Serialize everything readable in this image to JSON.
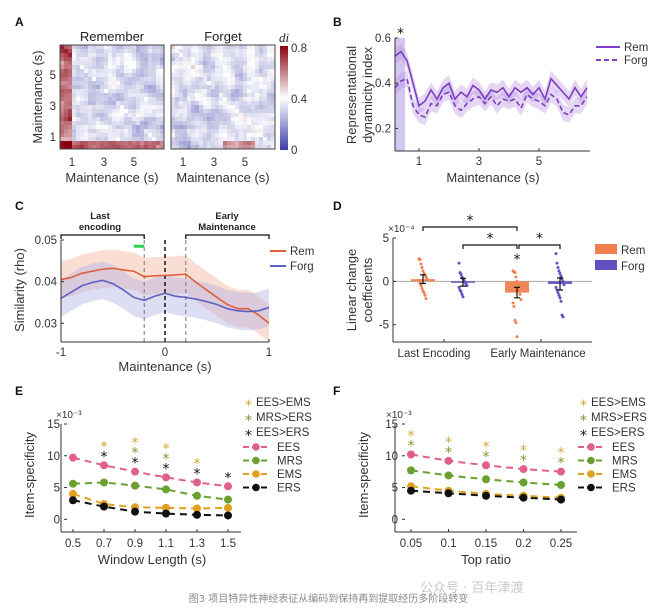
{
  "caption": "图3 项目特异性神经表征从编码到保持再到提取经历多阶段转变",
  "watermark": "公众号 · 百年津渡",
  "chart_data": [
    {
      "panel": "A",
      "type": "heatmap",
      "subplots": [
        "Remember",
        "Forget"
      ],
      "xlabel": "Maintenance (s)",
      "ylabel": "Maintenance (s)",
      "xticks": [
        "1",
        "3",
        "5"
      ],
      "yticks": [
        "1",
        "3",
        "5"
      ],
      "colorbar": {
        "label": "di",
        "ticks": [
          "0",
          "0.4",
          "0.8"
        ],
        "range": [
          0,
          0.8
        ],
        "colors": [
          "#3b3fa8",
          "#ffffff",
          "#8b0010"
        ]
      }
    },
    {
      "panel": "B",
      "type": "line",
      "xlabel": "Maintenance (s)",
      "ylabel": "Representational dynamicity index",
      "xticks": [
        "1",
        "3",
        "5"
      ],
      "yticks": [
        "0.2",
        "0.4",
        "0.6"
      ],
      "xlim": [
        0.2,
        6.7
      ],
      "ylim": [
        0.1,
        0.6
      ],
      "significance_marker": "*",
      "significant_window": [
        0.2,
        0.5
      ],
      "color": "#7b3fbf",
      "x": [
        0.2,
        0.4,
        0.6,
        0.8,
        1.0,
        1.2,
        1.4,
        1.6,
        1.8,
        2.0,
        2.2,
        2.4,
        2.6,
        2.8,
        3.0,
        3.2,
        3.4,
        3.6,
        3.8,
        4.0,
        4.2,
        4.4,
        4.6,
        4.8,
        5.0,
        5.2,
        5.4,
        5.6,
        5.8,
        6.0,
        6.2,
        6.4,
        6.6
      ],
      "series": [
        {
          "name": "Rem",
          "style": "solid",
          "values": [
            0.52,
            0.54,
            0.5,
            0.4,
            0.3,
            0.32,
            0.37,
            0.33,
            0.38,
            0.4,
            0.33,
            0.36,
            0.34,
            0.39,
            0.37,
            0.33,
            0.37,
            0.36,
            0.38,
            0.34,
            0.38,
            0.36,
            0.38,
            0.35,
            0.38,
            0.33,
            0.42,
            0.39,
            0.36,
            0.33,
            0.38,
            0.34,
            0.38
          ]
        },
        {
          "name": "Forg",
          "style": "dashed",
          "values": [
            0.38,
            0.41,
            0.42,
            0.3,
            0.26,
            0.25,
            0.31,
            0.3,
            0.35,
            0.36,
            0.3,
            0.28,
            0.31,
            0.33,
            0.34,
            0.31,
            0.34,
            0.3,
            0.33,
            0.32,
            0.33,
            0.29,
            0.35,
            0.33,
            0.32,
            0.3,
            0.35,
            0.33,
            0.27,
            0.26,
            0.3,
            0.3,
            0.34
          ]
        }
      ]
    },
    {
      "panel": "C",
      "type": "line",
      "xlabel": "Maintenance (s)",
      "ylabel": "Similarity (rho)",
      "xticks": [
        "-1",
        "0",
        "1"
      ],
      "yticks": [
        "0.03",
        "0.04",
        "0.05"
      ],
      "xlim": [
        -1,
        1
      ],
      "ylim": [
        0.0255,
        0.05
      ],
      "brackets": [
        {
          "label_lines": [
            "Last",
            "encoding"
          ],
          "range": [
            -1,
            -0.2
          ]
        },
        {
          "label_lines": [
            "Early",
            "Maintenance"
          ],
          "range": [
            0.2,
            1
          ]
        }
      ],
      "vlines": [
        -0.2,
        0,
        0.2
      ],
      "green_marker_range": [
        -0.3,
        -0.2
      ],
      "x": [
        -1.0,
        -0.9,
        -0.8,
        -0.7,
        -0.6,
        -0.5,
        -0.4,
        -0.3,
        -0.2,
        -0.1,
        0.0,
        0.1,
        0.2,
        0.3,
        0.4,
        0.5,
        0.6,
        0.7,
        0.8,
        0.9,
        1.0
      ],
      "series": [
        {
          "name": "Rem",
          "color": "#e0603a",
          "values": [
            0.0405,
            0.041,
            0.042,
            0.0425,
            0.043,
            0.0432,
            0.0428,
            0.0425,
            0.0412,
            0.0414,
            0.0415,
            0.0416,
            0.0418,
            0.0398,
            0.038,
            0.0362,
            0.0345,
            0.0335,
            0.0335,
            0.032,
            0.03
          ]
        },
        {
          "name": "Forg",
          "color": "#6060c0",
          "values": [
            0.036,
            0.0375,
            0.039,
            0.0398,
            0.0403,
            0.0395,
            0.038,
            0.0362,
            0.0355,
            0.0365,
            0.0372,
            0.0365,
            0.0362,
            0.0358,
            0.0352,
            0.0345,
            0.0335,
            0.033,
            0.0328,
            0.033,
            0.0338
          ]
        }
      ]
    },
    {
      "panel": "D",
      "type": "bar",
      "ylabel": "Linear change coefficients",
      "exponent_label": "×10⁻⁴",
      "categories": [
        "Last Encoding",
        "Early Maintenance"
      ],
      "yticks": [
        "-5",
        "0",
        "5"
      ],
      "ylim": [
        -7,
        5
      ],
      "series": [
        {
          "name": "Rem",
          "color": "#f08050",
          "values": [
            0.25,
            -1.3
          ],
          "sem": [
            0.5,
            0.6
          ]
        },
        {
          "name": "Forg",
          "color": "#6050c0",
          "values": [
            -0.1,
            -0.3
          ],
          "sem": [
            0.45,
            0.7
          ]
        }
      ],
      "points": {
        "Rem_LastEncoding": [
          2.6,
          2.5,
          2.0,
          1.6,
          1.2,
          0.9,
          0.7,
          0.5,
          0.3,
          0.1,
          -0.2,
          -0.5,
          -0.8,
          -1.1,
          -1.3,
          -1.6,
          -2.0
        ],
        "Forg_LastEncoding": [
          2.1,
          1.0,
          0.8,
          0.5,
          0.3,
          0.1,
          -0.1,
          -0.3,
          -0.5,
          -0.7,
          -1.0,
          -1.2,
          -1.5,
          -1.8
        ],
        "Rem_EarlyMaintenance": [
          1.2,
          1.1,
          1.0,
          0.5,
          0.0,
          -0.5,
          -1.0,
          -1.5,
          -2.1,
          -2.5,
          -2.9,
          -4.5,
          -4.8,
          -6.4
        ],
        "Forg_EarlyMaintenance": [
          3.2,
          2.1,
          1.6,
          1.2,
          0.9,
          0.6,
          0.3,
          0.0,
          -0.4,
          -0.7,
          -1.0,
          -1.3,
          -1.6,
          -1.9,
          -2.3,
          -3.9,
          -4.1
        ]
      },
      "significance": [
        {
          "between": "Rem Last Encoding vs Rem Early Maintenance",
          "marker": "*"
        },
        {
          "between": "Forg Last Encoding vs Rem Early Maintenance",
          "marker": "*"
        },
        {
          "between": "Rem Early Maintenance vs Forg Early Maintenance",
          "marker": "*"
        },
        {
          "between": "Rem Early Maintenance vs 0",
          "marker": "*"
        }
      ]
    },
    {
      "panel": "E",
      "type": "line",
      "xlabel": "Window Length (s)",
      "ylabel": "Item-specificity",
      "exponent_label": "×10⁻³",
      "x": [
        0.5,
        0.7,
        0.9,
        1.1,
        1.3,
        1.5
      ],
      "xticks": [
        "0.5",
        "0.7",
        "0.9",
        "1.1",
        "1.3",
        "1.5"
      ],
      "yticks": [
        "0",
        "5",
        "10",
        "15"
      ],
      "ylim": [
        -2,
        15
      ],
      "series": [
        {
          "name": "EES",
          "color": "#e0608a",
          "values": [
            9.7,
            8.5,
            7.5,
            6.6,
            5.8,
            5.2
          ]
        },
        {
          "name": "MRS",
          "color": "#6aa030",
          "values": [
            5.6,
            5.8,
            5.3,
            4.7,
            3.7,
            3.1
          ]
        },
        {
          "name": "EMS",
          "color": "#e0a020",
          "values": [
            4.0,
            2.4,
            1.9,
            1.8,
            1.7,
            1.8
          ]
        },
        {
          "name": "ERS",
          "color": "#111111",
          "values": [
            3.0,
            2.0,
            1.2,
            0.9,
            0.7,
            0.6
          ]
        }
      ],
      "significance_legend": [
        {
          "label": "EES>EMS",
          "color": "#d4a838"
        },
        {
          "label": "MRS>ERS",
          "color": "#7a9a2a"
        },
        {
          "label": "EES>ERS",
          "color": "#111111"
        }
      ],
      "significance_marks": {
        "EES>EMS": [
          0.7,
          0.9,
          1.1,
          1.3
        ],
        "MRS>ERS": [
          0.9,
          1.1
        ],
        "EES>ERS": [
          0.7,
          0.9,
          1.1,
          1.3,
          1.5
        ]
      }
    },
    {
      "panel": "F",
      "type": "line",
      "xlabel": "Top ratio",
      "ylabel": "Item-specificity",
      "exponent_label": "×10⁻³",
      "x": [
        0.05,
        0.1,
        0.15,
        0.2,
        0.25
      ],
      "xticks": [
        "0.05",
        "0.1",
        "0.15",
        "0.2",
        "0.25"
      ],
      "yticks": [
        "0",
        "5",
        "10",
        "15"
      ],
      "ylim": [
        -2,
        15
      ],
      "series": [
        {
          "name": "EES",
          "color": "#e0608a",
          "values": [
            10.2,
            9.2,
            8.5,
            7.9,
            7.5
          ]
        },
        {
          "name": "MRS",
          "color": "#6aa030",
          "values": [
            7.7,
            6.9,
            6.3,
            5.8,
            5.4
          ]
        },
        {
          "name": "EMS",
          "color": "#e0a020",
          "values": [
            5.2,
            4.5,
            4.0,
            3.7,
            3.4
          ]
        },
        {
          "name": "ERS",
          "color": "#111111",
          "values": [
            4.5,
            4.1,
            3.7,
            3.4,
            3.1
          ]
        }
      ],
      "significance_legend": [
        {
          "label": "EES>EMS",
          "color": "#d4a838"
        },
        {
          "label": "MRS>ERS",
          "color": "#7a9a2a"
        },
        {
          "label": "EES>ERS",
          "color": "#111111"
        }
      ],
      "significance_marks": {
        "EES>EMS": [
          0.05,
          0.1,
          0.15,
          0.2,
          0.25
        ],
        "MRS>ERS": [
          0.05,
          0.1,
          0.15,
          0.2,
          0.25
        ]
      }
    }
  ]
}
